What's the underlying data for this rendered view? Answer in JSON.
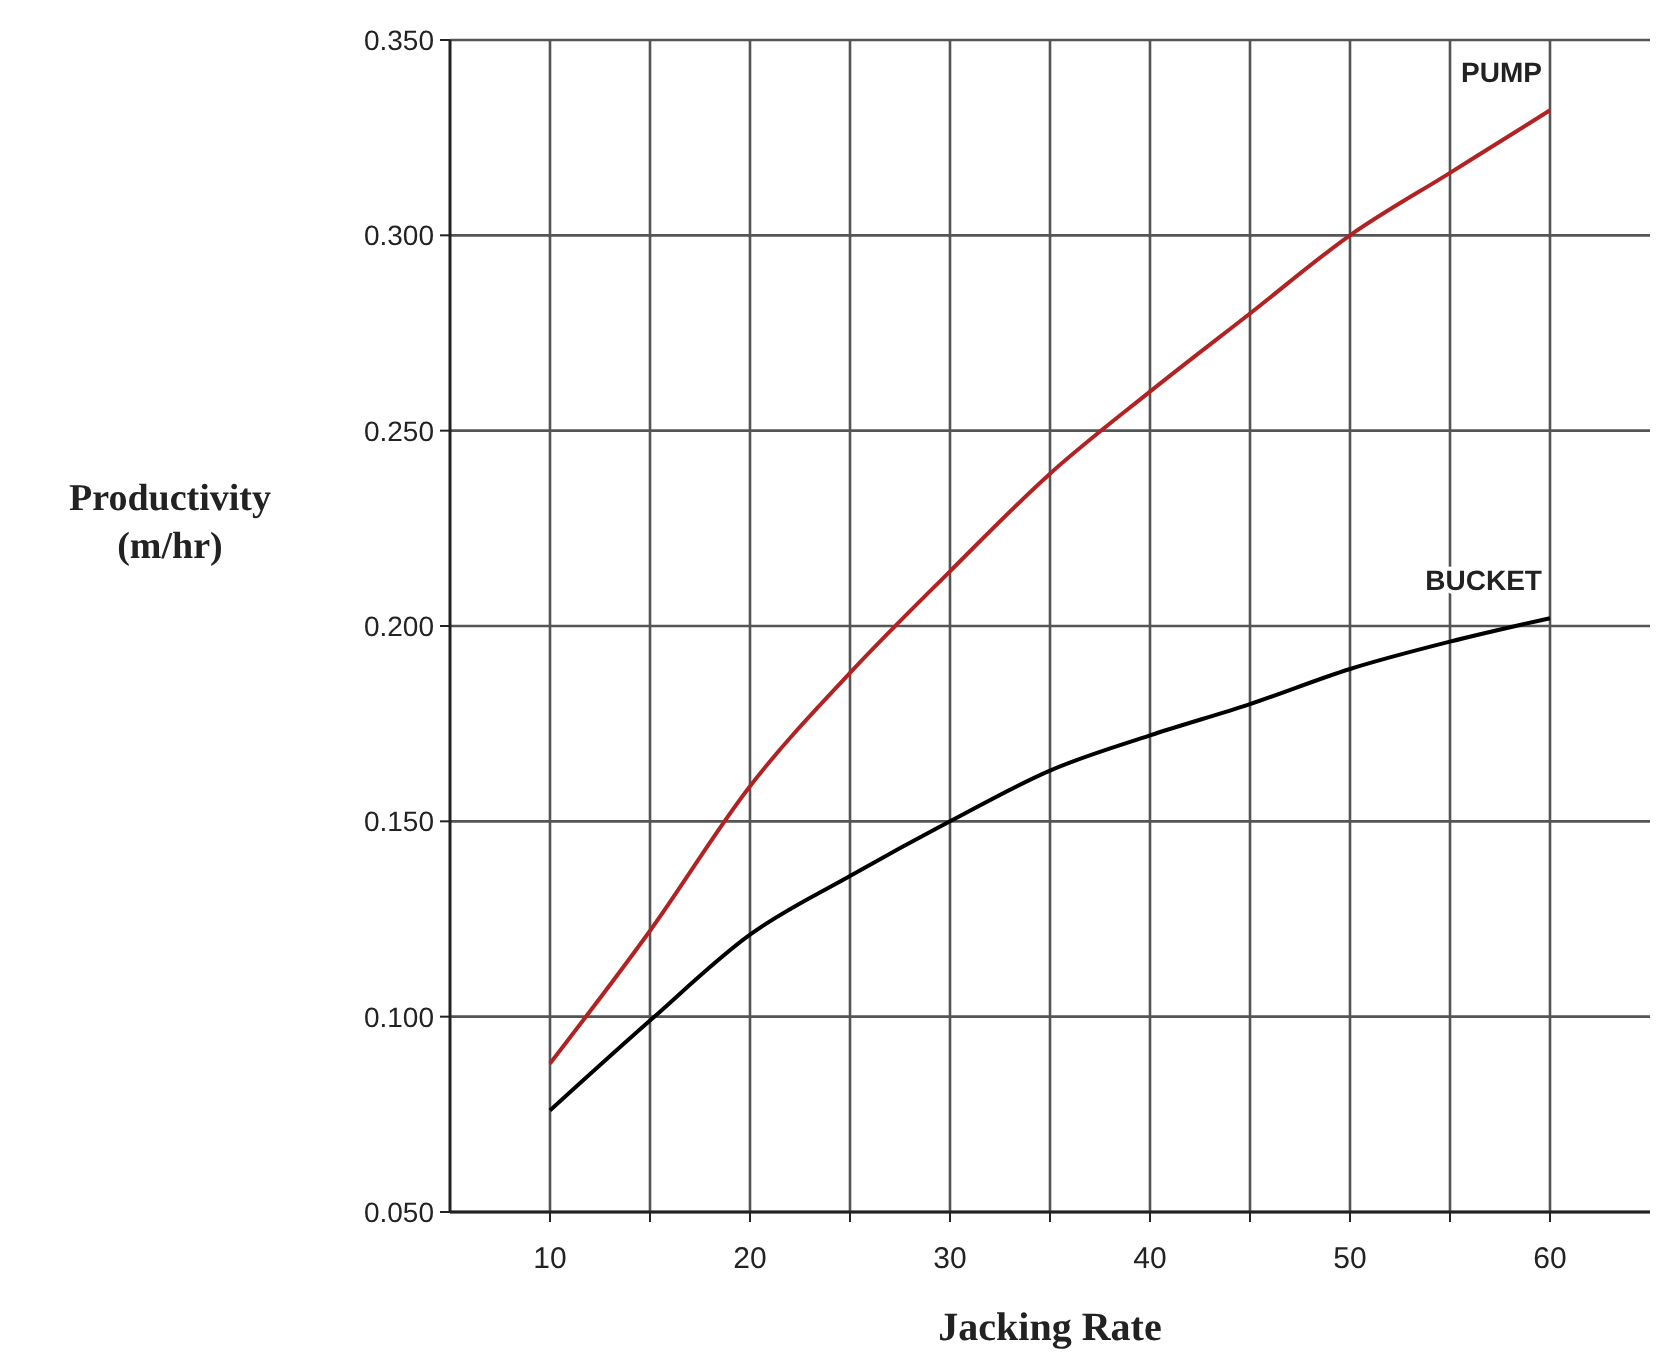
{
  "chart_data": {
    "type": "line",
    "xlabel": "Jacking Rate",
    "ylabel": "Productivity\n(m/hr)",
    "x": [
      10,
      15,
      20,
      25,
      30,
      35,
      40,
      45,
      50,
      55,
      60
    ],
    "series": [
      {
        "name": "PUMP",
        "color": "#b22222",
        "values": [
          0.088,
          0.122,
          0.159,
          0.188,
          0.214,
          0.239,
          0.26,
          0.28,
          0.3,
          0.316,
          0.332
        ]
      },
      {
        "name": "BUCKET",
        "color": "#000000",
        "values": [
          0.076,
          0.099,
          0.121,
          0.136,
          0.15,
          0.163,
          0.172,
          0.18,
          0.189,
          0.196,
          0.202
        ]
      }
    ],
    "xlim": [
      5,
      65
    ],
    "xticks": [
      10,
      {
        "value": 15,
        "label": null
      },
      20,
      {
        "value": 25,
        "label": null
      },
      30,
      {
        "value": 35,
        "label": null
      },
      40,
      {
        "value": 45,
        "label": null
      },
      50,
      {
        "value": 55,
        "label": null
      },
      60
    ],
    "ylim": [
      0.05,
      0.35
    ],
    "yticks": [
      {
        "value": 0.05,
        "label": "0.050"
      },
      {
        "value": 0.1,
        "label": "0.100"
      },
      {
        "value": 0.15,
        "label": "0.150"
      },
      {
        "value": 0.2,
        "label": "0.200"
      },
      {
        "value": 0.25,
        "label": "0.250"
      },
      {
        "value": 0.3,
        "label": "0.300"
      },
      {
        "value": 0.35,
        "label": "0.350"
      }
    ],
    "grid": true,
    "marker": "none",
    "line_style": "solid"
  }
}
